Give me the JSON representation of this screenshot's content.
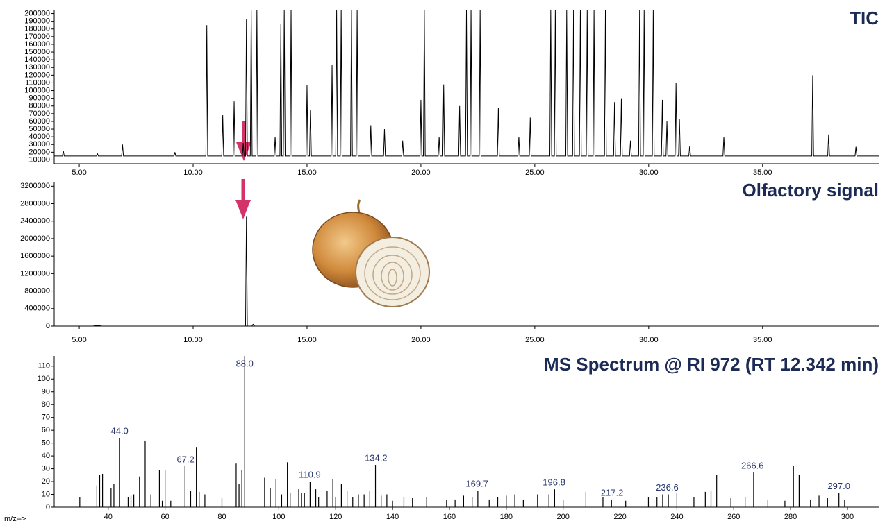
{
  "chart_data": [
    {
      "type": "line",
      "title": "TIC",
      "color": "#000000",
      "xlim": [
        3.9,
        40.1
      ],
      "xticks": [
        {
          "value": 5,
          "label": "5.00"
        },
        {
          "value": 10,
          "label": "10.00"
        },
        {
          "value": 15,
          "label": "15.00"
        },
        {
          "value": 20,
          "label": "20.00"
        },
        {
          "value": 25,
          "label": "25.00"
        },
        {
          "value": 30,
          "label": "30.00"
        },
        {
          "value": 35,
          "label": "35.00"
        }
      ],
      "ylim": [
        5000,
        205000
      ],
      "yticks": [
        10000,
        20000,
        30000,
        40000,
        50000,
        60000,
        70000,
        80000,
        90000,
        100000,
        110000,
        120000,
        130000,
        140000,
        150000,
        160000,
        170000,
        180000,
        190000,
        200000
      ],
      "x": [
        3.9,
        4.26,
        4.3,
        4.34,
        5.76,
        5.8,
        5.84,
        6.86,
        6.9,
        6.94,
        9.16,
        9.2,
        9.24,
        10.56,
        10.6,
        10.64,
        11.26,
        11.3,
        11.34,
        11.76,
        11.8,
        11.84,
        12.16,
        12.2,
        12.24,
        12.3,
        12.34,
        12.38,
        12.51,
        12.55,
        12.59,
        12.76,
        12.8,
        12.84,
        13.56,
        13.6,
        13.64,
        13.81,
        13.85,
        13.89,
        13.96,
        14.0,
        14.04,
        14.26,
        14.3,
        14.34,
        14.96,
        15.0,
        15.04,
        15.11,
        15.15,
        15.19,
        16.06,
        16.1,
        16.14,
        16.26,
        16.3,
        16.34,
        16.46,
        16.5,
        16.54,
        16.91,
        16.95,
        16.99,
        17.16,
        17.2,
        17.24,
        17.76,
        17.8,
        17.84,
        18.36,
        18.4,
        18.44,
        19.16,
        19.2,
        19.24,
        19.96,
        20.0,
        20.04,
        20.11,
        20.15,
        20.19,
        20.76,
        20.8,
        20.84,
        20.96,
        21.0,
        21.04,
        21.66,
        21.7,
        21.74,
        21.96,
        22.0,
        22.04,
        22.16,
        22.2,
        22.24,
        22.56,
        22.6,
        22.64,
        23.36,
        23.4,
        23.44,
        24.26,
        24.3,
        24.34,
        24.76,
        24.8,
        24.84,
        25.66,
        25.7,
        25.74,
        25.86,
        25.9,
        25.94,
        26.36,
        26.4,
        26.44,
        26.66,
        26.7,
        26.74,
        26.96,
        27.0,
        27.04,
        27.26,
        27.3,
        27.34,
        27.56,
        27.6,
        27.64,
        28.06,
        28.1,
        28.14,
        28.46,
        28.5,
        28.54,
        28.76,
        28.8,
        28.84,
        29.16,
        29.2,
        29.24,
        29.56,
        29.6,
        29.64,
        29.76,
        29.8,
        29.84,
        30.16,
        30.2,
        30.24,
        30.56,
        30.6,
        30.64,
        30.76,
        30.8,
        30.84,
        31.16,
        31.2,
        31.24,
        31.31,
        31.35,
        31.39,
        31.76,
        31.8,
        31.84,
        33.26,
        33.3,
        33.34,
        37.16,
        37.2,
        37.24,
        37.86,
        37.9,
        37.94,
        39.06,
        39.1,
        39.14,
        40.1
      ],
      "values": [
        15000,
        15000,
        22000,
        15000,
        15000,
        18000,
        15000,
        15000,
        30000,
        15000,
        15000,
        20000,
        15000,
        15000,
        185000,
        15000,
        15000,
        68000,
        15000,
        15000,
        86000,
        15000,
        15000,
        32000,
        15000,
        15000,
        193000,
        15000,
        15000,
        205000,
        15000,
        15000,
        205000,
        15000,
        15000,
        40000,
        15000,
        15000,
        187000,
        15000,
        15000,
        205000,
        15000,
        15000,
        205000,
        15000,
        15000,
        107000,
        15000,
        15000,
        75000,
        15000,
        15000,
        133000,
        15000,
        15000,
        205000,
        15000,
        15000,
        205000,
        15000,
        15000,
        205000,
        15000,
        15000,
        205000,
        15000,
        15000,
        55000,
        15000,
        15000,
        50000,
        15000,
        15000,
        35000,
        15000,
        15000,
        88000,
        15000,
        15000,
        205000,
        15000,
        15000,
        40000,
        15000,
        15000,
        108000,
        15000,
        15000,
        80000,
        15000,
        15000,
        205000,
        15000,
        15000,
        205000,
        15000,
        15000,
        205000,
        15000,
        15000,
        78000,
        15000,
        15000,
        40000,
        15000,
        15000,
        65000,
        15000,
        15000,
        205000,
        15000,
        15000,
        205000,
        15000,
        15000,
        205000,
        15000,
        15000,
        205000,
        15000,
        15000,
        205000,
        15000,
        15000,
        205000,
        15000,
        15000,
        205000,
        15000,
        15000,
        205000,
        15000,
        15000,
        85000,
        15000,
        15000,
        90000,
        15000,
        15000,
        35000,
        15000,
        15000,
        205000,
        15000,
        15000,
        205000,
        15000,
        15000,
        205000,
        15000,
        15000,
        88000,
        15000,
        15000,
        60000,
        15000,
        15000,
        110000,
        15000,
        15000,
        63000,
        15000,
        15000,
        28000,
        15000,
        15000,
        40000,
        15000,
        15000,
        120000,
        15000,
        15000,
        43000,
        15000,
        15000,
        27000,
        15000,
        15000
      ]
    },
    {
      "type": "line",
      "title": "Olfactory signal",
      "color": "#000000",
      "xlim": [
        3.9,
        40.1
      ],
      "xticks": [
        {
          "value": 5,
          "label": "5.00"
        },
        {
          "value": 10,
          "label": "10.00"
        },
        {
          "value": 15,
          "label": "15.00"
        },
        {
          "value": 20,
          "label": "20.00"
        },
        {
          "value": 25,
          "label": "25.00"
        },
        {
          "value": 30,
          "label": "30.00"
        },
        {
          "value": 35,
          "label": "35.00"
        }
      ],
      "ylim": [
        0,
        3300000
      ],
      "yticks": [
        0,
        400000,
        800000,
        1200000,
        1600000,
        2000000,
        2400000,
        2800000,
        3200000
      ],
      "x": [
        3.9,
        5.6,
        5.8,
        6.0,
        12.3,
        12.34,
        12.38,
        12.58,
        12.63,
        12.7,
        40.1
      ],
      "values": [
        0,
        0,
        15000,
        0,
        0,
        2500000,
        0,
        0,
        40000,
        0,
        0
      ]
    },
    {
      "type": "stem",
      "title": "MS Spectrum @ RI 972 (RT 12.342 min)",
      "color": "#000000",
      "x_label": "m/z-->",
      "xlim": [
        21,
        311
      ],
      "xticks": [
        40,
        60,
        80,
        100,
        120,
        140,
        160,
        180,
        200,
        220,
        240,
        260,
        280,
        300
      ],
      "ylim": [
        0,
        118
      ],
      "yticks": [
        0,
        10,
        20,
        30,
        40,
        50,
        60,
        70,
        80,
        90,
        100,
        110
      ],
      "x": [
        30,
        36,
        37,
        38,
        41,
        42,
        44,
        47,
        48,
        49,
        51,
        53,
        55,
        58,
        59,
        60,
        62,
        67,
        69,
        71,
        72,
        74,
        80,
        85,
        86,
        87,
        88,
        95,
        97,
        99,
        101,
        103,
        104,
        107,
        108,
        109,
        111,
        113,
        114,
        117,
        119,
        120,
        122,
        124,
        126,
        128,
        130,
        132,
        134,
        136,
        138,
        140,
        144,
        147,
        152,
        159,
        162,
        165,
        168,
        170,
        174,
        177,
        180,
        183,
        186,
        191,
        195,
        197,
        200,
        208,
        214,
        217,
        222,
        230,
        233,
        235,
        237,
        240,
        246,
        250,
        252,
        254,
        259,
        264,
        267,
        272,
        278,
        281,
        283,
        287,
        290,
        293,
        297,
        299
      ],
      "values": [
        8,
        17,
        25,
        26,
        15,
        18,
        54,
        8,
        9,
        10,
        24,
        52,
        10,
        29,
        5,
        29,
        5,
        32,
        13,
        47,
        12,
        10,
        7,
        34,
        18,
        29,
        118,
        23,
        15,
        22,
        10,
        35,
        11,
        14,
        11,
        11,
        20,
        14,
        8,
        13,
        22,
        8,
        18,
        13,
        8,
        10,
        10,
        13,
        33,
        9,
        10,
        5,
        8,
        7,
        8,
        6,
        6,
        9,
        8,
        13,
        6,
        8,
        9,
        10,
        6,
        10,
        10,
        14,
        6,
        12,
        8,
        6,
        5,
        8,
        8,
        10,
        10,
        11,
        8,
        12,
        13,
        25,
        7,
        8,
        27,
        6,
        5,
        32,
        25,
        6,
        9,
        7,
        11,
        6
      ],
      "annotations": [
        {
          "x": 44,
          "y": 54,
          "text": "44.0"
        },
        {
          "x": 67.2,
          "y": 32,
          "text": "67.2"
        },
        {
          "x": 88,
          "y": 118,
          "text": "88.0"
        },
        {
          "x": 110.9,
          "y": 20,
          "text": "110.9"
        },
        {
          "x": 134.2,
          "y": 33,
          "text": "134.2"
        },
        {
          "x": 169.7,
          "y": 13,
          "text": "169.7"
        },
        {
          "x": 196.8,
          "y": 14,
          "text": "196.8"
        },
        {
          "x": 217.2,
          "y": 6,
          "text": "217.2"
        },
        {
          "x": 236.6,
          "y": 10,
          "text": "236.6"
        },
        {
          "x": 266.6,
          "y": 27,
          "text": "266.6"
        },
        {
          "x": 297,
          "y": 11,
          "text": "297.0"
        }
      ]
    }
  ]
}
